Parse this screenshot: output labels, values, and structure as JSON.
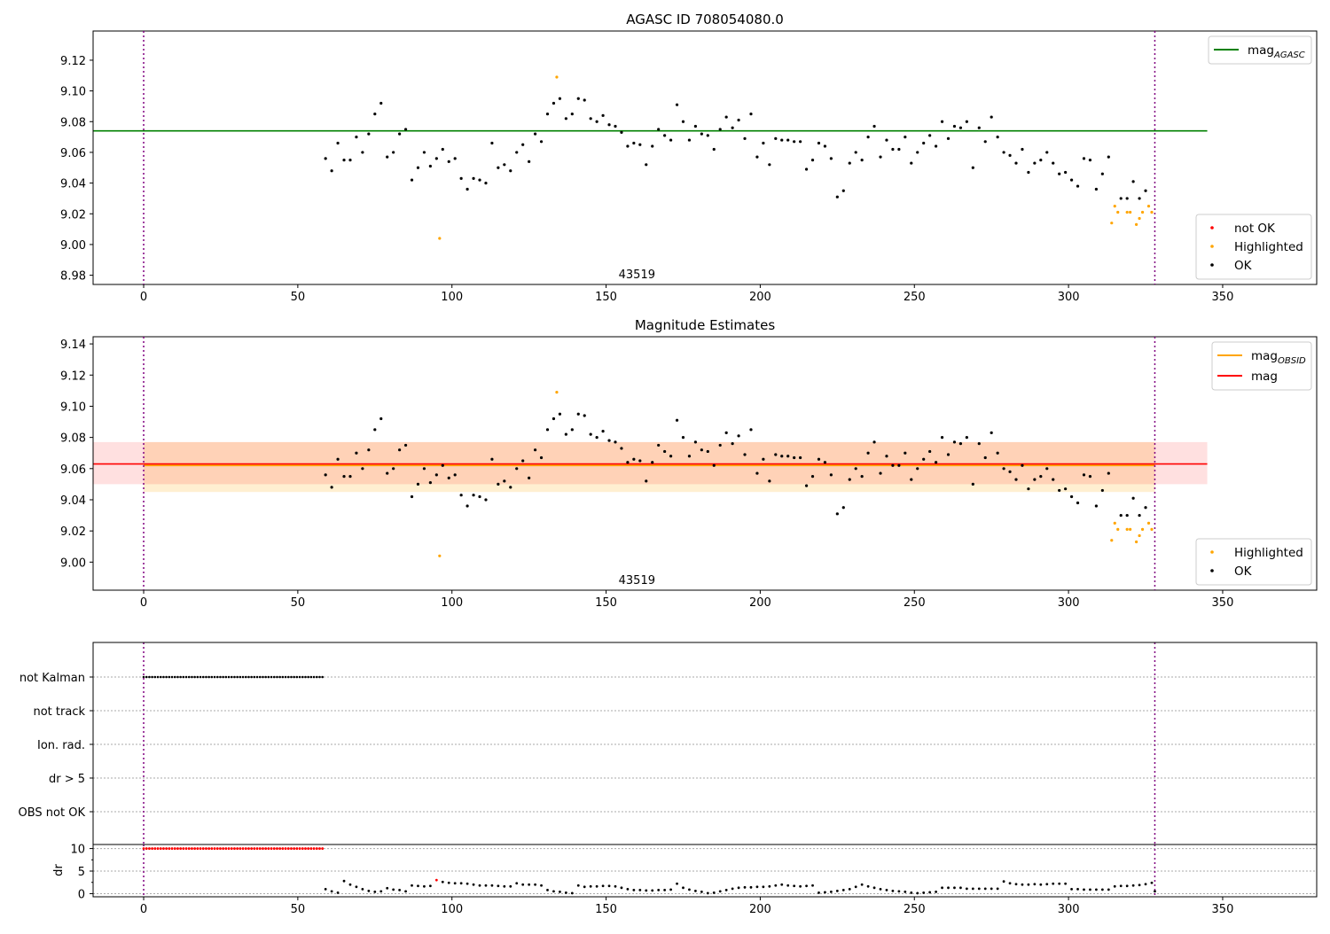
{
  "chart_data": [
    {
      "type": "scatter",
      "title": "AGASC ID 708054080.0",
      "xlim": [
        -16.4,
        380.5
      ],
      "ylim": [
        8.974,
        9.139
      ],
      "xticks": [
        0,
        50,
        100,
        150,
        200,
        250,
        300,
        350
      ],
      "yticks": [
        8.98,
        9.0,
        9.02,
        9.04,
        9.06,
        9.08,
        9.1,
        9.12
      ],
      "annotation": "43519",
      "annotation_at": [
        160,
        8.978
      ],
      "vlines": [
        0,
        328
      ],
      "hlines": [
        {
          "name": "mag_AGASC",
          "label": "mag",
          "sub": "AGASC",
          "y": 9.074,
          "x": [
            -16.4,
            345
          ],
          "color": "#008000"
        }
      ],
      "legend_lines": [
        {
          "label": "mag",
          "sub": "AGASC",
          "color": "#008000"
        }
      ],
      "legend_points": [
        {
          "label": "not OK",
          "color": "#ff0000"
        },
        {
          "label": "Highlighted",
          "color": "#ffa500"
        },
        {
          "label": "OK",
          "color": "#000000"
        }
      ]
    },
    {
      "type": "scatter",
      "title": "Magnitude Estimates",
      "xlim": [
        -16.4,
        380.5
      ],
      "ylim": [
        8.982,
        9.1446
      ],
      "xticks": [
        0,
        50,
        100,
        150,
        200,
        250,
        300,
        350
      ],
      "yticks": [
        9.0,
        9.02,
        9.04,
        9.06,
        9.08,
        9.1,
        9.12,
        9.14
      ],
      "annotation": "43519",
      "annotation_at": [
        160,
        8.986
      ],
      "vlines": [
        0,
        328
      ],
      "bands": [
        {
          "name": "mag-obsid-band",
          "y": [
            9.045,
            9.077
          ],
          "x": [
            0,
            328
          ],
          "color": "#ffa500",
          "opacity": 0.18
        },
        {
          "name": "mag-band",
          "y": [
            9.05,
            9.077
          ],
          "x": [
            -16.4,
            345
          ],
          "color": "#ff0000",
          "opacity": 0.12
        }
      ],
      "hlines": [
        {
          "name": "mag_OBSID",
          "y": 9.062,
          "x": [
            0,
            328
          ],
          "color": "#ffa500"
        },
        {
          "name": "mag",
          "y": 9.063,
          "x": [
            -16.4,
            345
          ],
          "color": "#ff0000"
        }
      ],
      "legend_lines": [
        {
          "label": "mag",
          "sub": "OBSID",
          "color": "#ffa500"
        },
        {
          "label": "mag",
          "sub": "",
          "color": "#ff0000"
        }
      ],
      "legend_points": [
        {
          "label": "Highlighted",
          "color": "#ffa500"
        },
        {
          "label": "OK",
          "color": "#000000"
        }
      ]
    },
    {
      "type": "scatter",
      "title": "",
      "categories": [
        "not Kalman",
        "not track",
        "Ion. rad.",
        "dr > 5",
        "OBS not OK"
      ],
      "not_kalman_x_range": [
        0,
        58
      ],
      "not_kalman_count": 64,
      "vlines": [
        0,
        328
      ]
    },
    {
      "type": "scatter",
      "ylabel": "dr",
      "xlim": [
        -16.4,
        380.5
      ],
      "ylim": [
        -0.7,
        10.9
      ],
      "xticks": [
        0,
        50,
        100,
        150,
        200,
        250,
        300,
        350
      ],
      "yticks": [
        0,
        5,
        10
      ],
      "red_at_10_x_range": [
        0,
        58
      ],
      "red_at_10_count": 64,
      "points": {
        "x": [
          59,
          61,
          63,
          65,
          67,
          69,
          71,
          73,
          75,
          77,
          79,
          81,
          83,
          85,
          87,
          89,
          91,
          93,
          95,
          97,
          99,
          101,
          103,
          105,
          107,
          109,
          111,
          113,
          115,
          117,
          119,
          121,
          123,
          125,
          127,
          129,
          131,
          133,
          135,
          137,
          139,
          141,
          143,
          145,
          147,
          149,
          151,
          153,
          155,
          157,
          159,
          161,
          163,
          165,
          167,
          169,
          171,
          173,
          175,
          177,
          179,
          181,
          183,
          185,
          187,
          189,
          191,
          193,
          195,
          197,
          199,
          201,
          203,
          205,
          207,
          209,
          211,
          213,
          215,
          217,
          219,
          221,
          223,
          225,
          227,
          229,
          231,
          233,
          235,
          237,
          239,
          241,
          243,
          245,
          247,
          249,
          251,
          253,
          255,
          257,
          259,
          261,
          263,
          265,
          267,
          269,
          271,
          273,
          275,
          277,
          279,
          281,
          283,
          285,
          287,
          289,
          291,
          293,
          295,
          297,
          299,
          301,
          303,
          305,
          307,
          309,
          311,
          313,
          315,
          317,
          319,
          321,
          323,
          325,
          327,
          328
        ],
        "dr": [
          1.0,
          0.5,
          0.2,
          2.8,
          2.0,
          1.5,
          1.0,
          0.6,
          0.4,
          0.5,
          1.2,
          0.9,
          0.8,
          0.5,
          1.8,
          1.7,
          1.6,
          1.7,
          3.0,
          2.6,
          2.4,
          2.3,
          2.3,
          2.2,
          2.0,
          1.8,
          1.8,
          1.8,
          1.7,
          1.6,
          1.6,
          2.3,
          2.0,
          2.0,
          2.0,
          1.8,
          0.8,
          0.5,
          0.4,
          0.2,
          0.1,
          1.8,
          1.5,
          1.6,
          1.6,
          1.7,
          1.7,
          1.6,
          1.3,
          1.0,
          0.8,
          0.8,
          0.7,
          0.7,
          0.8,
          0.8,
          0.9,
          2.2,
          1.3,
          0.9,
          0.6,
          0.4,
          0.1,
          0.2,
          0.5,
          0.8,
          1.1,
          1.3,
          1.4,
          1.4,
          1.5,
          1.5,
          1.6,
          1.8,
          2.0,
          1.8,
          1.7,
          1.6,
          1.7,
          1.8,
          0.2,
          0.3,
          0.4,
          0.6,
          0.8,
          1.0,
          1.5,
          2.0,
          1.6,
          1.3,
          1.0,
          0.8,
          0.6,
          0.5,
          0.4,
          0.2,
          0.1,
          0.2,
          0.3,
          0.4,
          1.3,
          1.3,
          1.3,
          1.3,
          1.1,
          1.1,
          1.1,
          1.1,
          1.1,
          1.1,
          2.7,
          2.3,
          2.1,
          2.0,
          2.0,
          2.1,
          2.0,
          2.1,
          2.2,
          2.2,
          2.2,
          1.0,
          1.0,
          0.9,
          0.9,
          0.9,
          0.9,
          0.9,
          1.6,
          1.7,
          1.7,
          1.8,
          1.9,
          2.1,
          2.4,
          0.5
        ],
        "red_x": [
          95
        ]
      }
    }
  ],
  "mag_points": {
    "ok_x": [
      59,
      61,
      63,
      65,
      67,
      69,
      71,
      73,
      75,
      77,
      79,
      81,
      83,
      85,
      87,
      89,
      91,
      93,
      95,
      97,
      99,
      101,
      103,
      105,
      107,
      109,
      111,
      113,
      115,
      117,
      119,
      121,
      123,
      125,
      127,
      129,
      131,
      133,
      135,
      137,
      139,
      141,
      143,
      145,
      147,
      149,
      151,
      153,
      155,
      157,
      159,
      161,
      163,
      165,
      167,
      169,
      171,
      173,
      175,
      177,
      179,
      181,
      183,
      185,
      187,
      189,
      191,
      193,
      195,
      197,
      199,
      201,
      203,
      205,
      207,
      209,
      211,
      213,
      215,
      217,
      219,
      221,
      223,
      225,
      227,
      229,
      231,
      233,
      235,
      237,
      239,
      241,
      243,
      245,
      247,
      249,
      251,
      253,
      255,
      257,
      259,
      261,
      263,
      265,
      267,
      269,
      271,
      273,
      275,
      277,
      279,
      281,
      283,
      285,
      287,
      289,
      291,
      293,
      295,
      297,
      299,
      301,
      303,
      305,
      307,
      309,
      311,
      313,
      317,
      319,
      321,
      323,
      325
    ],
    "ok_mag": [
      9.056,
      9.048,
      9.066,
      9.055,
      9.055,
      9.07,
      9.06,
      9.072,
      9.085,
      9.092,
      9.057,
      9.06,
      9.072,
      9.075,
      9.042,
      9.05,
      9.06,
      9.051,
      9.056,
      9.062,
      9.054,
      9.056,
      9.043,
      9.036,
      9.043,
      9.042,
      9.04,
      9.066,
      9.05,
      9.052,
      9.048,
      9.06,
      9.065,
      9.054,
      9.072,
      9.067,
      9.085,
      9.092,
      9.095,
      9.082,
      9.085,
      9.095,
      9.094,
      9.082,
      9.08,
      9.084,
      9.078,
      9.077,
      9.073,
      9.064,
      9.066,
      9.065,
      9.052,
      9.064,
      9.075,
      9.071,
      9.068,
      9.091,
      9.08,
      9.068,
      9.077,
      9.072,
      9.071,
      9.062,
      9.075,
      9.083,
      9.076,
      9.081,
      9.069,
      9.085,
      9.057,
      9.066,
      9.052,
      9.069,
      9.068,
      9.068,
      9.067,
      9.067,
      9.049,
      9.055,
      9.066,
      9.064,
      9.056,
      9.031,
      9.035,
      9.053,
      9.06,
      9.055,
      9.07,
      9.077,
      9.057,
      9.068,
      9.062,
      9.062,
      9.07,
      9.053,
      9.06,
      9.066,
      9.071,
      9.064,
      9.08,
      9.069,
      9.077,
      9.076,
      9.08,
      9.05,
      9.076,
      9.067,
      9.083,
      9.07,
      9.06,
      9.058,
      9.053,
      9.062,
      9.047,
      9.053,
      9.055,
      9.06,
      9.053,
      9.046,
      9.047,
      9.042,
      9.038,
      9.056,
      9.055,
      9.036,
      9.046,
      9.057,
      9.03,
      9.03,
      9.041,
      9.03,
      9.035
    ],
    "highlighted_x": [
      96,
      134,
      314,
      315,
      316,
      319,
      320,
      322,
      323,
      324,
      326,
      327
    ],
    "highlighted_mag": [
      9.004,
      9.109,
      9.014,
      9.025,
      9.021,
      9.021,
      9.021,
      9.013,
      9.017,
      9.021,
      9.025,
      9.021
    ]
  }
}
